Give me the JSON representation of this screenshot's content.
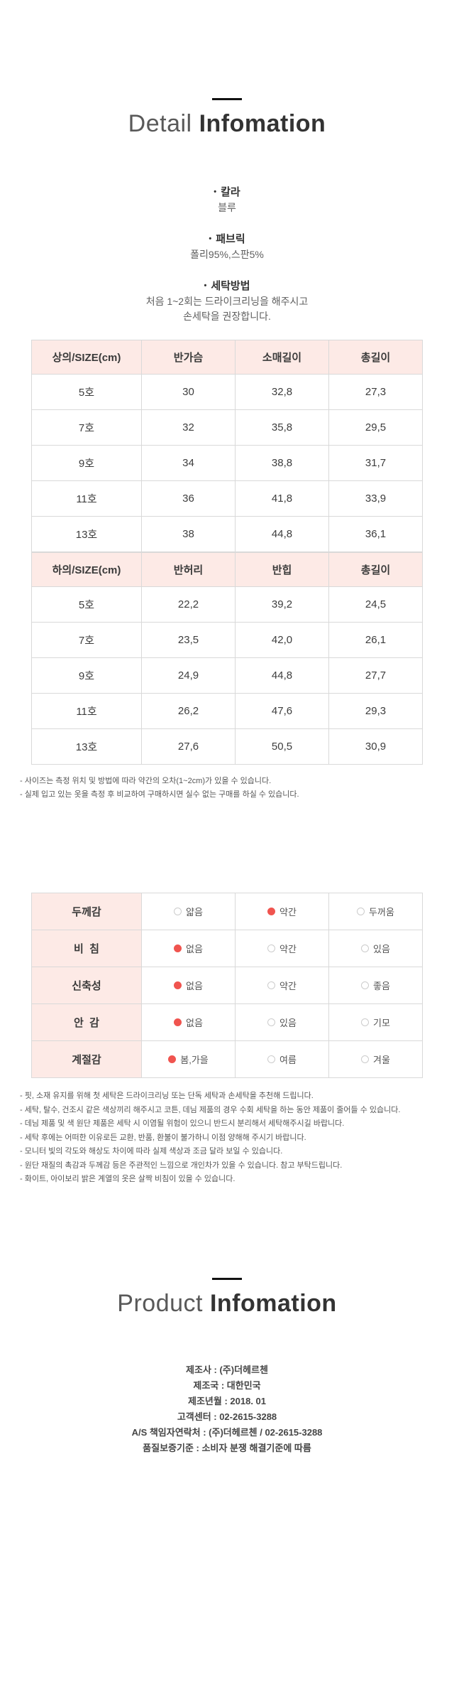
{
  "colors": {
    "header_bg": "#fdeae6",
    "accent_red": "#f0544f",
    "border": "#d9d9d9",
    "divider": "#111111"
  },
  "detail_section": {
    "title_light": "Detail",
    "title_bold": "Infomation",
    "bullet": "•",
    "specs": [
      {
        "label": "칼라",
        "lines": [
          "블루"
        ]
      },
      {
        "label": "패브릭",
        "lines": [
          "폴리95%,스판5%"
        ]
      },
      {
        "label": "세탁방법",
        "lines": [
          "처음 1~2회는 드라이크리닝을 해주시고",
          "손세탁을 권장합니다."
        ]
      }
    ]
  },
  "size_tables": [
    {
      "headers": [
        "상의/SIZE(cm)",
        "반가슴",
        "소매길이",
        "총길이"
      ],
      "rows": [
        [
          "5호",
          "30",
          "32,8",
          "27,3"
        ],
        [
          "7호",
          "32",
          "35,8",
          "29,5"
        ],
        [
          "9호",
          "34",
          "38,8",
          "31,7"
        ],
        [
          "11호",
          "36",
          "41,8",
          "33,9"
        ],
        [
          "13호",
          "38",
          "44,8",
          "36,1"
        ]
      ]
    },
    {
      "headers": [
        "하의/SIZE(cm)",
        "반허리",
        "반힙",
        "총길이"
      ],
      "rows": [
        [
          "5호",
          "22,2",
          "39,2",
          "24,5"
        ],
        [
          "7호",
          "23,5",
          "42,0",
          "26,1"
        ],
        [
          "9호",
          "24,9",
          "44,8",
          "27,7"
        ],
        [
          "11호",
          "26,2",
          "47,6",
          "29,3"
        ],
        [
          "13호",
          "27,6",
          "50,5",
          "30,9"
        ]
      ]
    }
  ],
  "size_notes": [
    "- 사이즈는 측정 위치 및 방법에 따라 약간의 오차(1~2cm)가 있을 수 있습니다.",
    "- 실제 입고 있는 옷을 측정 후 비교하여 구매하시면 실수 없는 구매를 하실 수 있습니다."
  ],
  "attributes_table": {
    "rows": [
      {
        "label": "두께감",
        "options": [
          {
            "text": "얇음",
            "selected": false
          },
          {
            "text": "약간",
            "selected": true
          },
          {
            "text": "두꺼움",
            "selected": false
          }
        ]
      },
      {
        "label": "비  침",
        "options": [
          {
            "text": "없음",
            "selected": true
          },
          {
            "text": "약간",
            "selected": false
          },
          {
            "text": "있음",
            "selected": false
          }
        ]
      },
      {
        "label": "신축성",
        "options": [
          {
            "text": "없음",
            "selected": true
          },
          {
            "text": "약간",
            "selected": false
          },
          {
            "text": "좋음",
            "selected": false
          }
        ]
      },
      {
        "label": "안  감",
        "options": [
          {
            "text": "없음",
            "selected": true
          },
          {
            "text": "있음",
            "selected": false
          },
          {
            "text": "기모",
            "selected": false
          }
        ]
      },
      {
        "label": "계절감",
        "options": [
          {
            "text": "봄,가을",
            "selected": true
          },
          {
            "text": "여름",
            "selected": false
          },
          {
            "text": "겨울",
            "selected": false
          }
        ]
      }
    ]
  },
  "care_notes": [
    "- 핏, 소재 유지를 위해 첫 세탁은 드라이크리닝 또는 단독 세탁과 손세탁을 추천해 드립니다.",
    "- 세탁, 탈수, 건조시 같은 색상끼리 해주시고 코튼, 데님 제품의 경우 수회 세탁을 하는 동안 제품이 줄어들 수 있습니다.",
    "- 데님 제품 및 색 원단 제품은 세탁 시 이염될 위험이 있으니 반드시 분리해서 세탁해주시길 바랍니다.",
    "- 세탁 후에는 어떠한 이유로든 교환, 반품, 환불이 불가하니 이점 양해해 주시기 바랍니다.",
    "- 모니터 빛의 각도와 해상도 차이에 따라 실제 색상과 조금 달라 보일 수 있습니다.",
    "- 원단 재질의 촉감과 두께감 등은 주관적인 느낌으로 개인차가 있을 수 있습니다. 참고 부탁드립니다.",
    "- 화이트, 아이보리 밝은 계열의 옷은 살짝 비침이 있을 수 있습니다."
  ],
  "product_section": {
    "title_light": "Product",
    "title_bold": "Infomation",
    "info_lines": [
      "제조사 : (주)더헤르첸",
      "제조국 : 대한민국",
      "제조년월 : 2018. 01",
      "고객센터 : 02-2615-3288",
      "A/S 책임자연락처 : (주)더헤르첸 / 02-2615-3288",
      "품질보증기준 : 소비자 분쟁 해결기준에 따름"
    ]
  }
}
